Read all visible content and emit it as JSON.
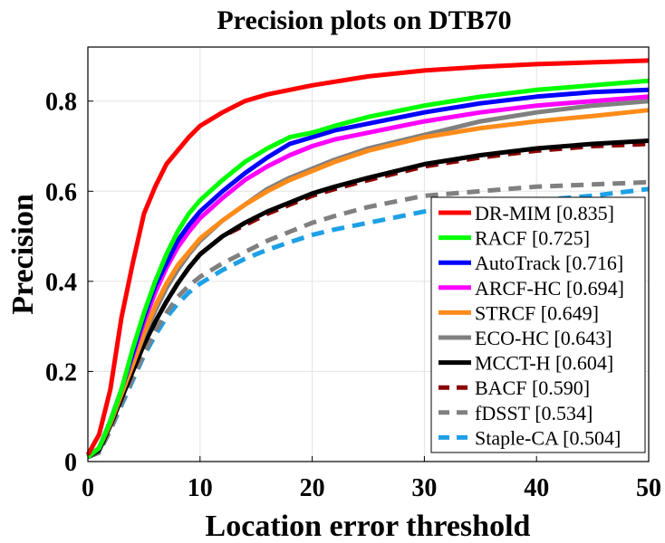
{
  "chart_data": {
    "type": "line",
    "title": "Precision plots on DTB70",
    "xlabel": "Location error threshold",
    "ylabel": "Precision",
    "xlim": [
      0,
      50
    ],
    "ylim": [
      0,
      0.92
    ],
    "xticks": [
      0,
      10,
      20,
      30,
      40,
      50
    ],
    "xtick_labels": [
      "0",
      "10",
      "20",
      "30",
      "40",
      "50"
    ],
    "yticks": [
      0,
      0.2,
      0.4,
      0.6,
      0.8
    ],
    "ytick_labels": [
      "0",
      "0.2",
      "0.4",
      "0.6",
      "0.8"
    ],
    "grid": true,
    "legend_position": "lower-right",
    "x": [
      0,
      1,
      2,
      3,
      4,
      5,
      6,
      7,
      8,
      9,
      10,
      12,
      14,
      16,
      18,
      20,
      22,
      25,
      30,
      35,
      40,
      45,
      50
    ],
    "series": [
      {
        "name": "DR-MIM [0.835]",
        "color": "#ff0000",
        "dash": "solid",
        "values": [
          0.015,
          0.06,
          0.16,
          0.32,
          0.44,
          0.55,
          0.61,
          0.66,
          0.69,
          0.72,
          0.745,
          0.775,
          0.8,
          0.815,
          0.825,
          0.835,
          0.843,
          0.855,
          0.868,
          0.876,
          0.882,
          0.886,
          0.89
        ]
      },
      {
        "name": "RACF [0.725]",
        "color": "#00ff00",
        "dash": "solid",
        "values": [
          0.01,
          0.03,
          0.09,
          0.16,
          0.25,
          0.33,
          0.4,
          0.46,
          0.51,
          0.55,
          0.58,
          0.625,
          0.665,
          0.695,
          0.72,
          0.73,
          0.745,
          0.765,
          0.79,
          0.81,
          0.825,
          0.835,
          0.845
        ]
      },
      {
        "name": "AutoTrack [0.716]",
        "color": "#0000ff",
        "dash": "solid",
        "values": [
          0.01,
          0.03,
          0.09,
          0.16,
          0.24,
          0.32,
          0.39,
          0.44,
          0.49,
          0.525,
          0.555,
          0.6,
          0.64,
          0.675,
          0.705,
          0.72,
          0.735,
          0.75,
          0.775,
          0.795,
          0.81,
          0.82,
          0.825
        ]
      },
      {
        "name": "ARCF-HC [0.694]",
        "color": "#ff00ff",
        "dash": "solid",
        "values": [
          0.01,
          0.03,
          0.09,
          0.16,
          0.235,
          0.31,
          0.375,
          0.43,
          0.475,
          0.51,
          0.54,
          0.585,
          0.625,
          0.655,
          0.68,
          0.7,
          0.715,
          0.73,
          0.755,
          0.775,
          0.79,
          0.8,
          0.81
        ]
      },
      {
        "name": "STRCF [0.649]",
        "color": "#ff8c1a",
        "dash": "solid",
        "values": [
          0.01,
          0.03,
          0.085,
          0.15,
          0.215,
          0.285,
          0.345,
          0.395,
          0.435,
          0.465,
          0.495,
          0.535,
          0.57,
          0.6,
          0.625,
          0.645,
          0.665,
          0.69,
          0.72,
          0.74,
          0.755,
          0.767,
          0.78
        ]
      },
      {
        "name": "ECO-HC [0.643]",
        "color": "#808080",
        "dash": "solid",
        "values": [
          0.01,
          0.03,
          0.085,
          0.15,
          0.215,
          0.28,
          0.335,
          0.385,
          0.425,
          0.46,
          0.49,
          0.535,
          0.57,
          0.605,
          0.63,
          0.65,
          0.67,
          0.695,
          0.725,
          0.755,
          0.775,
          0.79,
          0.8
        ]
      },
      {
        "name": "MCCT-H [0.604]",
        "color": "#000000",
        "dash": "solid",
        "values": [
          0.01,
          0.025,
          0.08,
          0.14,
          0.2,
          0.26,
          0.31,
          0.355,
          0.395,
          0.43,
          0.46,
          0.5,
          0.53,
          0.555,
          0.575,
          0.595,
          0.61,
          0.63,
          0.66,
          0.68,
          0.695,
          0.705,
          0.712
        ]
      },
      {
        "name": "BACF [0.590]",
        "color": "#8b0000",
        "dash": "long",
        "values": [
          0.01,
          0.025,
          0.08,
          0.14,
          0.2,
          0.26,
          0.31,
          0.355,
          0.395,
          0.43,
          0.46,
          0.5,
          0.525,
          0.55,
          0.57,
          0.59,
          0.605,
          0.625,
          0.655,
          0.675,
          0.69,
          0.7,
          0.705
        ]
      },
      {
        "name": "fDSST [0.534]",
        "color": "#808080",
        "dash": "long",
        "values": [
          0.01,
          0.02,
          0.07,
          0.13,
          0.185,
          0.24,
          0.29,
          0.33,
          0.365,
          0.39,
          0.41,
          0.44,
          0.465,
          0.49,
          0.51,
          0.53,
          0.545,
          0.565,
          0.59,
          0.6,
          0.61,
          0.615,
          0.62
        ]
      },
      {
        "name": "Staple-CA [0.504]",
        "color": "#1ea0e6",
        "dash": "long",
        "values": [
          0.01,
          0.02,
          0.07,
          0.125,
          0.18,
          0.235,
          0.28,
          0.32,
          0.35,
          0.375,
          0.395,
          0.425,
          0.45,
          0.47,
          0.487,
          0.503,
          0.515,
          0.53,
          0.555,
          0.57,
          0.58,
          0.59,
          0.605
        ]
      }
    ]
  }
}
